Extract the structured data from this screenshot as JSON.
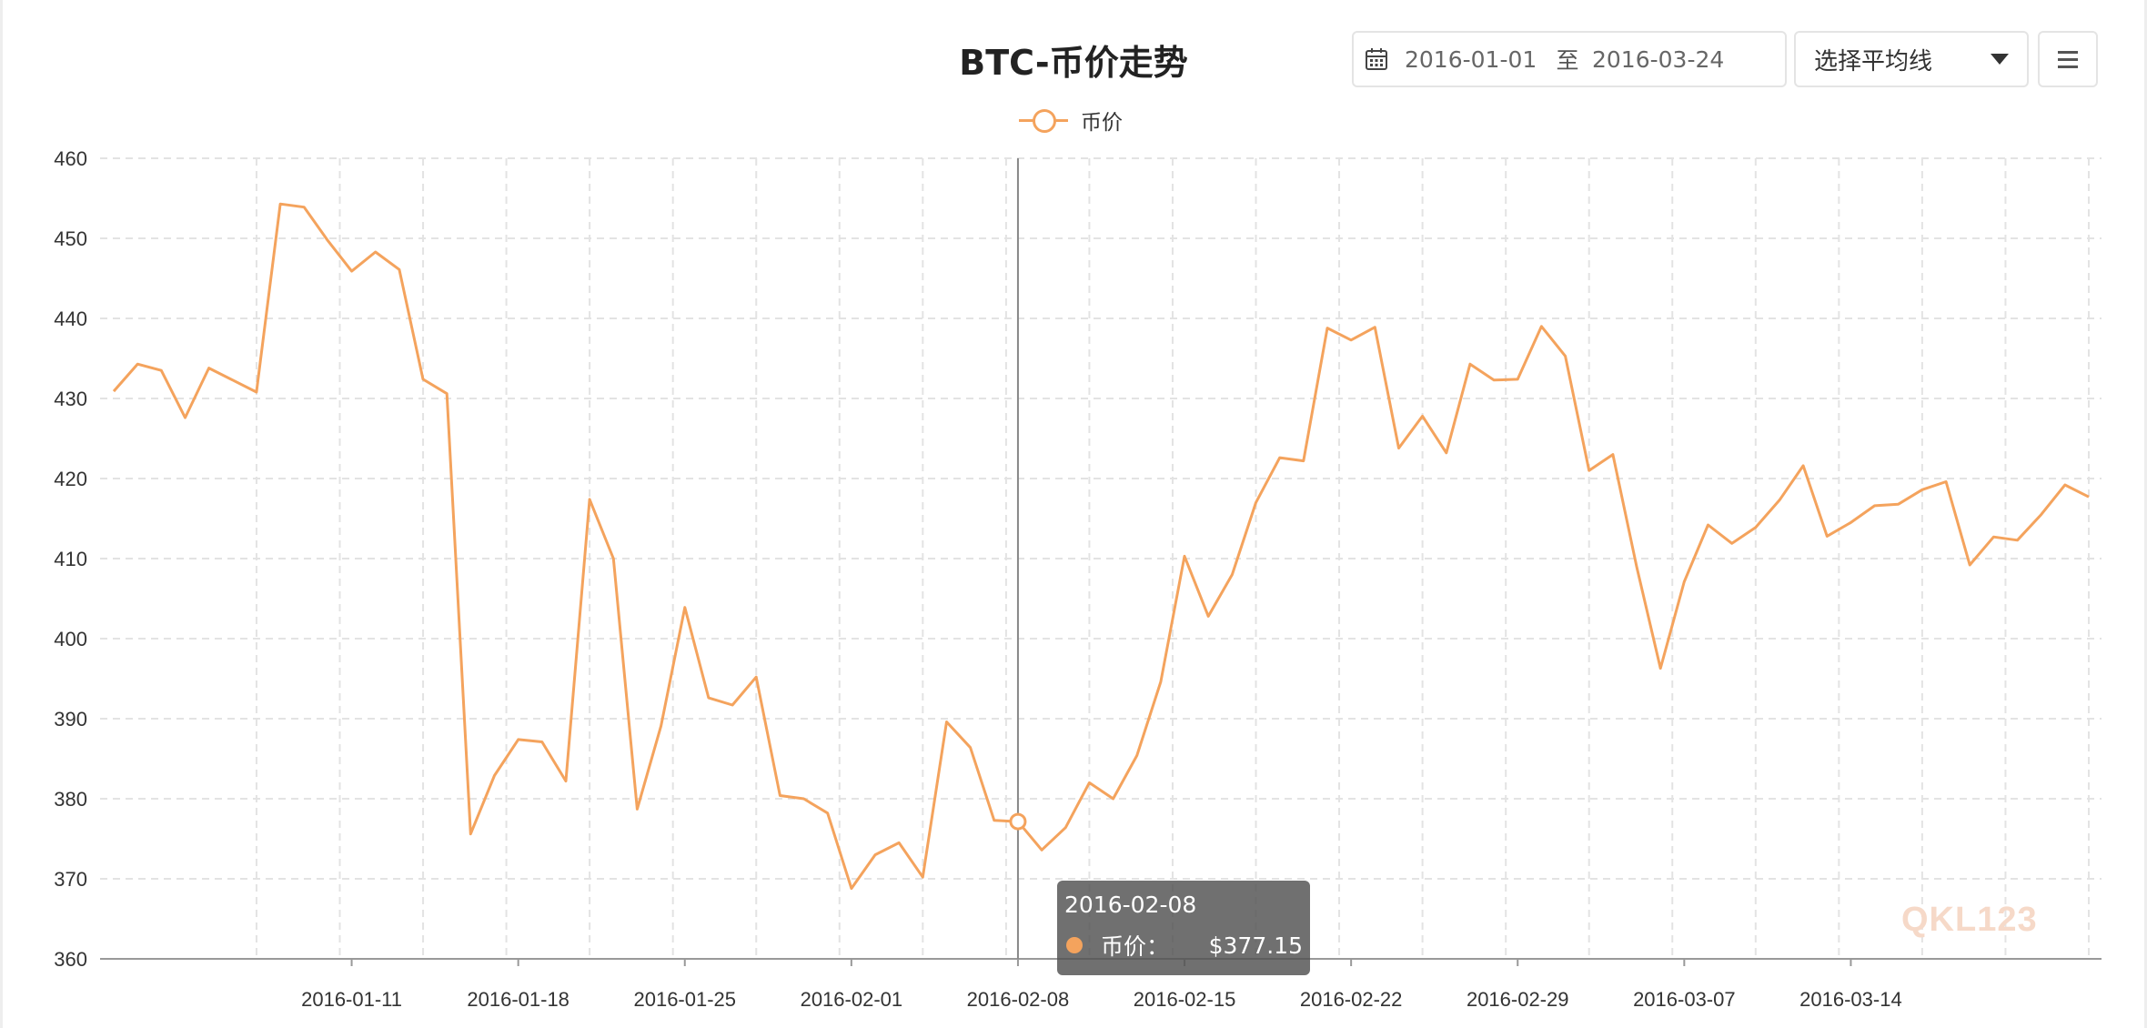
{
  "title": "BTC-币价走势",
  "legend": {
    "label": "币价"
  },
  "date_range": {
    "start": "2016-01-01",
    "separator": "至",
    "end": "2016-03-24"
  },
  "average_select": {
    "label": "选择平均线"
  },
  "tooltip": {
    "date": "2016-02-08",
    "label": "币价：",
    "value": "$377.15"
  },
  "watermark": "QKL123",
  "colors": {
    "series": "#f4a35d",
    "grid": "#e3e3e3",
    "axis": "#999999",
    "crosshair": "#888888"
  },
  "chart_data": {
    "type": "line",
    "title": "BTC-币价走势",
    "xlabel": "",
    "ylabel": "",
    "ylim": [
      360,
      460
    ],
    "yticks": [
      360,
      370,
      380,
      390,
      400,
      410,
      420,
      430,
      440,
      450,
      460
    ],
    "x_start": "2016-01-01",
    "x_end": "2016-03-24",
    "xtick_labels": [
      "2016-01-11",
      "2016-01-18",
      "2016-01-25",
      "2016-02-01",
      "2016-02-08",
      "2016-02-15",
      "2016-02-22",
      "2016-02-29",
      "2016-03-07",
      "2016-03-14"
    ],
    "grid": true,
    "legend_position": "top-center",
    "highlight": {
      "date": "2016-02-08",
      "value": 377.15
    },
    "series": [
      {
        "name": "币价",
        "x": [
          "2016-01-01",
          "2016-01-02",
          "2016-01-03",
          "2016-01-04",
          "2016-01-05",
          "2016-01-06",
          "2016-01-07",
          "2016-01-08",
          "2016-01-09",
          "2016-01-10",
          "2016-01-11",
          "2016-01-12",
          "2016-01-13",
          "2016-01-14",
          "2016-01-15",
          "2016-01-16",
          "2016-01-17",
          "2016-01-18",
          "2016-01-19",
          "2016-01-20",
          "2016-01-21",
          "2016-01-22",
          "2016-01-23",
          "2016-01-24",
          "2016-01-25",
          "2016-01-26",
          "2016-01-27",
          "2016-01-28",
          "2016-01-29",
          "2016-01-30",
          "2016-01-31",
          "2016-02-01",
          "2016-02-02",
          "2016-02-03",
          "2016-02-04",
          "2016-02-05",
          "2016-02-06",
          "2016-02-07",
          "2016-02-08",
          "2016-02-09",
          "2016-02-10",
          "2016-02-11",
          "2016-02-12",
          "2016-02-13",
          "2016-02-14",
          "2016-02-15",
          "2016-02-16",
          "2016-02-17",
          "2016-02-18",
          "2016-02-19",
          "2016-02-20",
          "2016-02-21",
          "2016-02-22",
          "2016-02-23",
          "2016-02-24",
          "2016-02-25",
          "2016-02-26",
          "2016-02-27",
          "2016-02-28",
          "2016-02-29",
          "2016-03-01",
          "2016-03-02",
          "2016-03-03",
          "2016-03-04",
          "2016-03-05",
          "2016-03-06",
          "2016-03-07",
          "2016-03-08",
          "2016-03-09",
          "2016-03-10",
          "2016-03-11",
          "2016-03-12",
          "2016-03-13",
          "2016-03-14",
          "2016-03-15",
          "2016-03-16",
          "2016-03-17",
          "2016-03-18",
          "2016-03-19",
          "2016-03-20",
          "2016-03-21",
          "2016-03-22",
          "2016-03-23",
          "2016-03-24"
        ],
        "values": [
          430.9,
          434.3,
          433.5,
          427.6,
          433.8,
          432.3,
          430.8,
          454.3,
          453.9,
          449.7,
          445.9,
          448.3,
          446.1,
          432.4,
          430.6,
          375.6,
          382.9,
          387.4,
          387.1,
          382.2,
          417.4,
          410.0,
          378.7,
          389.1,
          403.9,
          392.6,
          391.7,
          395.2,
          380.4,
          380.0,
          378.2,
          368.8,
          373.0,
          374.5,
          370.2,
          389.6,
          386.4,
          377.3,
          377.15,
          373.6,
          376.4,
          382.0,
          380.0,
          385.4,
          394.6,
          410.3,
          402.8,
          408.0,
          417.0,
          422.6,
          422.2,
          438.8,
          437.3,
          438.9,
          423.8,
          427.8,
          423.2,
          434.3,
          432.3,
          432.4,
          439.0,
          435.3,
          421.0,
          423.0,
          409.0,
          396.3,
          407.1,
          414.2,
          411.9,
          413.9,
          417.3,
          421.6,
          412.8,
          414.5,
          416.6,
          416.8,
          418.6,
          419.6,
          409.2,
          412.7,
          412.3,
          415.5,
          419.2,
          417.7
        ]
      }
    ]
  }
}
